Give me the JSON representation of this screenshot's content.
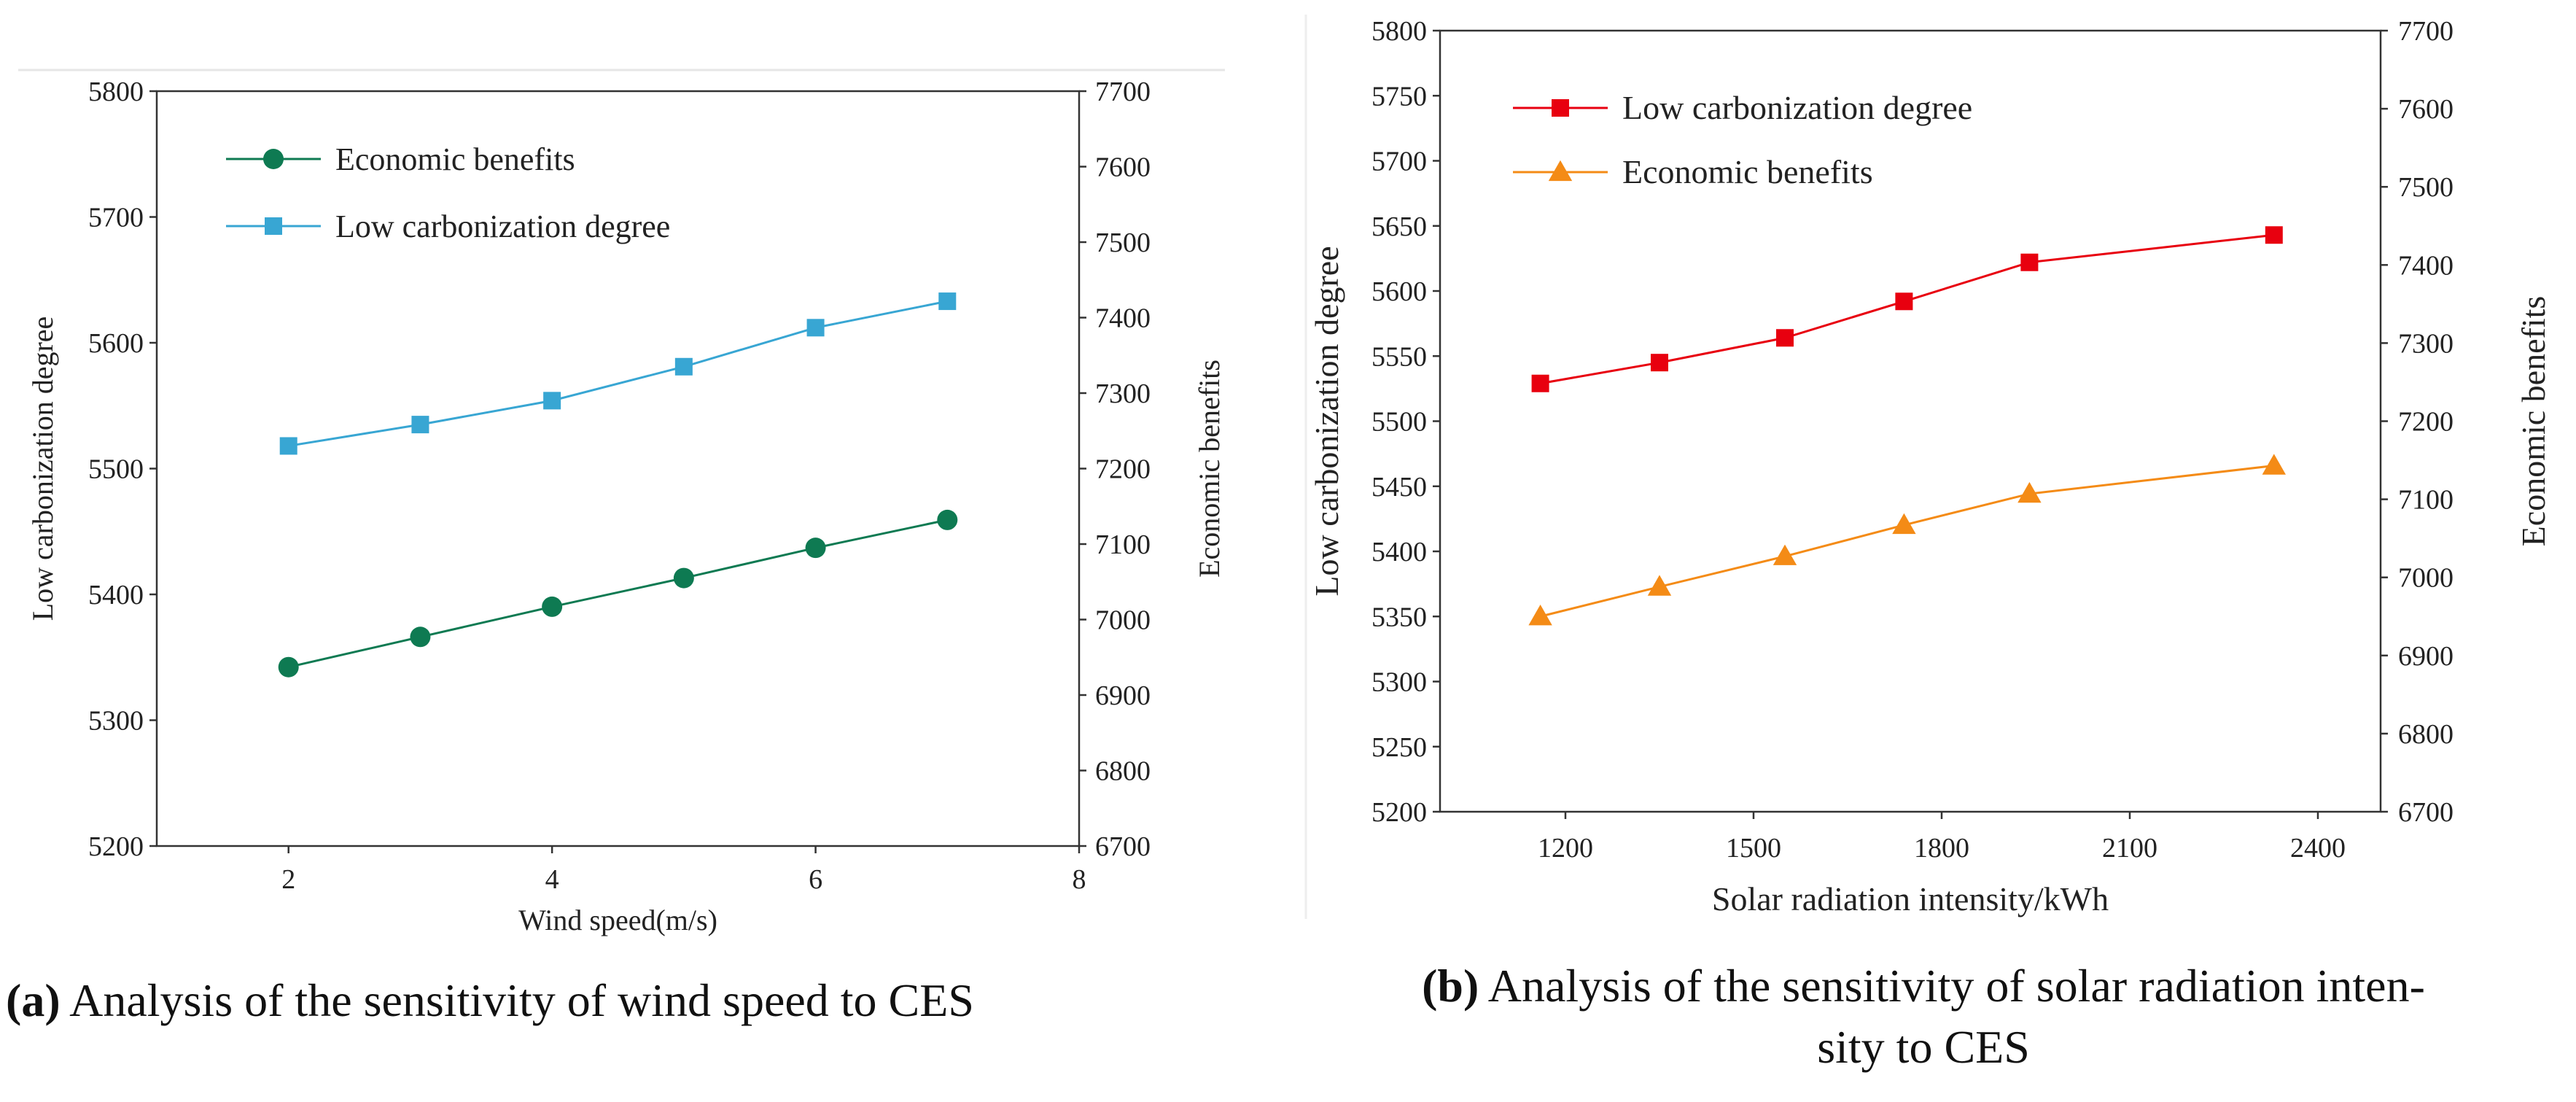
{
  "chart_data": [
    {
      "id": "a",
      "type": "line",
      "xlabel": "Wind speed(m/s)",
      "ylabel_left": "Low carbonization degree",
      "ylabel_right": "Economic benefits",
      "xlim": [
        1,
        8
      ],
      "ylim_left": [
        5200,
        5800
      ],
      "ylim_right": [
        6700,
        7700
      ],
      "x_ticks": [
        2,
        4,
        6,
        8
      ],
      "y_left_ticks": [
        5200,
        5300,
        5400,
        5500,
        5600,
        5700,
        5800
      ],
      "y_right_ticks": [
        6700,
        6800,
        6900,
        7000,
        7100,
        7200,
        7300,
        7400,
        7500,
        7600,
        7700
      ],
      "series": [
        {
          "name": "Economic benefits",
          "axis": "right",
          "color": "#0e7a52",
          "marker": "circle",
          "x": [
            2,
            3,
            4,
            5,
            6,
            7
          ],
          "values": [
            6937,
            6977,
            7017,
            7055,
            7095,
            7132
          ]
        },
        {
          "name": "Low carbonization degree",
          "axis": "left",
          "color": "#38a6d3",
          "marker": "square",
          "x": [
            2,
            3,
            4,
            5,
            6,
            7
          ],
          "values": [
            5518,
            5535,
            5554,
            5581,
            5612,
            5633
          ]
        }
      ],
      "legend": "top-left",
      "caption_label": "(a)",
      "caption_text": " Analysis of the sensitivity of wind speed to CES"
    },
    {
      "id": "b",
      "type": "line",
      "xlabel": "Solar radiation intensity/kWh",
      "ylabel_left": "Low carbonization degree",
      "ylabel_right": "Economic benefits",
      "xlim": [
        1000,
        2500
      ],
      "ylim_left": [
        5200,
        5800
      ],
      "ylim_right": [
        6700,
        7700
      ],
      "x_ticks": [
        1200,
        1500,
        1800,
        2100,
        2400
      ],
      "y_left_ticks": [
        5200,
        5250,
        5300,
        5350,
        5400,
        5450,
        5500,
        5550,
        5600,
        5650,
        5700,
        5750,
        5800
      ],
      "y_right_ticks": [
        6700,
        6800,
        6900,
        7000,
        7100,
        7200,
        7300,
        7400,
        7500,
        7600,
        7700
      ],
      "series": [
        {
          "name": "Low carbonization degree",
          "axis": "left",
          "color": "#e8000f",
          "marker": "square",
          "x": [
            1160,
            1350,
            1550,
            1740,
            1940,
            2330
          ],
          "values": [
            5529,
            5545,
            5564,
            5592,
            5622,
            5643
          ]
        },
        {
          "name": "Economic benefits",
          "axis": "right",
          "color": "#f48b16",
          "marker": "triangle",
          "x": [
            1160,
            1350,
            1550,
            1740,
            1940,
            2330
          ],
          "values": [
            6950,
            6988,
            7027,
            7067,
            7107,
            7143
          ]
        }
      ],
      "legend": "top-left",
      "caption_label": "(b)",
      "caption_line1": " Analysis of the sensitivity of solar radiation inten-",
      "caption_line2": "sity to CES"
    }
  ]
}
